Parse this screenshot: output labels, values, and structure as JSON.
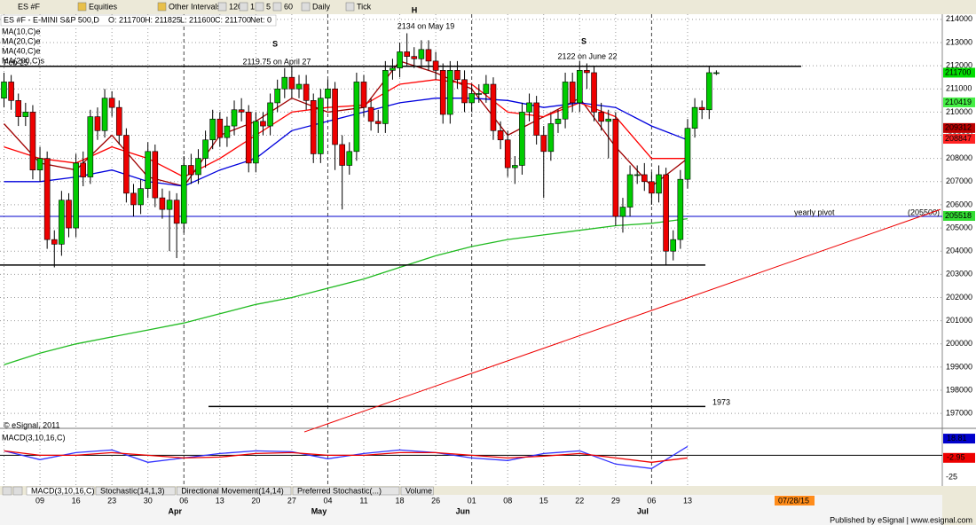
{
  "toolbar": {
    "symbol": "ES #F",
    "items": [
      "Equities",
      "Other Intervals",
      "120",
      "1",
      "5",
      "60",
      "Daily",
      "Tick"
    ]
  },
  "chart_data": {
    "type": "candlestick",
    "title": "ES #F - E-MINI S&P 500,D",
    "quote": [
      "O: 211700",
      "H: 211825",
      "L: 211600",
      "C: 211700",
      "Net: 0"
    ],
    "weeks": [
      null,
      "09",
      "16",
      "23",
      "30",
      "06",
      "13",
      "20",
      "27",
      "04",
      "11",
      "18",
      "26",
      "01",
      "08",
      "15",
      "22",
      "29",
      "06",
      "13"
    ],
    "months": [
      null,
      null,
      null,
      null,
      null,
      "Apr",
      null,
      null,
      null,
      "May",
      null,
      null,
      null,
      "Jun",
      null,
      null,
      null,
      null,
      "Jul",
      null
    ],
    "open": [
      2106,
      2113,
      2105,
      2098,
      2100,
      2075,
      2080,
      2045,
      2043,
      2062,
      2050,
      2078,
      2072,
      2098,
      2092,
      2106,
      2102,
      2090,
      2065,
      2060,
      2067,
      2083,
      2063,
      2058,
      2062,
      2052,
      2077,
      2073,
      2080,
      2088,
      2097,
      2089,
      2094,
      2101,
      2100,
      2078,
      2096,
      2094,
      2104,
      2110,
      2115,
      2110,
      2112,
      2105,
      2082,
      2106,
      2110,
      2086,
      2077,
      2083,
      2113,
      2102,
      2096,
      2095,
      2118,
      2119,
      2126,
      2124,
      2123,
      2127,
      2122,
      2118,
      2099,
      2118,
      2114,
      2104,
      2108,
      2108,
      2112,
      2092,
      2088,
      2076,
      2077,
      2100,
      2104,
      2090,
      2083,
      2095,
      2097,
      2113,
      2104,
      2118,
      2117,
      2100,
      2096,
      2097,
      2055,
      2059,
      2073,
      2073,
      2070,
      2065,
      2073,
      2040,
      2045,
      2071,
      2093,
      2102,
      2101,
      2117
    ],
    "high": [
      2117,
      2116,
      2108,
      2104,
      2103,
      2085,
      2083,
      2049,
      2066,
      2065,
      2082,
      2083,
      2101,
      2102,
      2110,
      2109,
      2105,
      2093,
      2069,
      2071,
      2087,
      2086,
      2067,
      2066,
      2065,
      2081,
      2082,
      2084,
      2092,
      2101,
      2100,
      2098,
      2105,
      2106,
      2103,
      2100,
      2100,
      2108,
      2114,
      2119,
      2120,
      2116,
      2116,
      2108,
      2110,
      2114,
      2113,
      2090,
      2087,
      2117,
      2116,
      2106,
      2101,
      2122,
      2123,
      2130,
      2134,
      2128,
      2131,
      2131,
      2126,
      2121,
      2122,
      2122,
      2118,
      2112,
      2112,
      2116,
      2115,
      2096,
      2092,
      2081,
      2104,
      2108,
      2107,
      2094,
      2099,
      2101,
      2117,
      2117,
      2122,
      2121,
      2120,
      2104,
      2101,
      2100,
      2063,
      2077,
      2077,
      2078,
      2074,
      2077,
      2076,
      2049,
      2075,
      2097,
      2106,
      2105,
      2120,
      2118
    ],
    "low": [
      2102,
      2101,
      2094,
      2094,
      2071,
      2070,
      2041,
      2033,
      2038,
      2046,
      2046,
      2068,
      2069,
      2088,
      2089,
      2098,
      2086,
      2061,
      2055,
      2056,
      2063,
      2059,
      2054,
      2040,
      2037,
      2048,
      2069,
      2069,
      2076,
      2084,
      2085,
      2085,
      2090,
      2096,
      2074,
      2074,
      2090,
      2090,
      2100,
      2106,
      2106,
      2106,
      2101,
      2078,
      2078,
      2102,
      2075,
      2058,
      2073,
      2079,
      2098,
      2092,
      2091,
      2091,
      2114,
      2115,
      2120,
      2119,
      2119,
      2118,
      2114,
      2095,
      2095,
      2110,
      2100,
      2100,
      2104,
      2104,
      2088,
      2084,
      2072,
      2069,
      2073,
      2096,
      2086,
      2063,
      2079,
      2091,
      2093,
      2100,
      2100,
      2110,
      2096,
      2092,
      2080,
      2051,
      2048,
      2055,
      2069,
      2066,
      2060,
      2061,
      2034,
      2036,
      2041,
      2067,
      2089,
      2097,
      2097,
      2116
    ],
    "close": [
      2113,
      2105,
      2098,
      2100,
      2075,
      2080,
      2045,
      2043,
      2062,
      2050,
      2078,
      2072,
      2098,
      2092,
      2106,
      2102,
      2090,
      2065,
      2060,
      2067,
      2083,
      2063,
      2058,
      2062,
      2052,
      2077,
      2073,
      2080,
      2088,
      2097,
      2089,
      2094,
      2101,
      2100,
      2078,
      2096,
      2094,
      2104,
      2110,
      2115,
      2110,
      2112,
      2105,
      2082,
      2106,
      2110,
      2086,
      2077,
      2083,
      2113,
      2102,
      2096,
      2095,
      2118,
      2119,
      2126,
      2124,
      2123,
      2127,
      2122,
      2118,
      2099,
      2118,
      2114,
      2104,
      2108,
      2108,
      2112,
      2092,
      2088,
      2076,
      2077,
      2100,
      2104,
      2090,
      2083,
      2095,
      2097,
      2113,
      2104,
      2118,
      2117,
      2100,
      2096,
      2097,
      2055,
      2059,
      2073,
      2073,
      2070,
      2065,
      2073,
      2040,
      2045,
      2071,
      2093,
      2102,
      2101,
      2117,
      2117
    ],
    "up_color": "#00cc00",
    "down_color": "#ee0000",
    "ylim": [
      1967,
      2143
    ],
    "yticks": [
      {
        "value": 2140,
        "label": "214000"
      },
      {
        "value": 2130,
        "label": "213000"
      },
      {
        "value": 2120,
        "label": "212000"
      },
      {
        "value": 2110,
        "label": "211000"
      },
      {
        "value": 2100,
        "label": "210000"
      },
      {
        "value": 2090,
        "label": "209000"
      },
      {
        "value": 2080,
        "label": "208000"
      },
      {
        "value": 2070,
        "label": "207000"
      },
      {
        "value": 2060,
        "label": "206000"
      },
      {
        "value": 2050,
        "label": "205000"
      },
      {
        "value": 2040,
        "label": "204000"
      },
      {
        "value": 2030,
        "label": "203000"
      },
      {
        "value": 2020,
        "label": "202000"
      },
      {
        "value": 2010,
        "label": "201000"
      },
      {
        "value": 2000,
        "label": "200000"
      },
      {
        "value": 1990,
        "label": "199000"
      },
      {
        "value": 1980,
        "label": "198000"
      },
      {
        "value": 1970,
        "label": "197000"
      }
    ],
    "grid": true,
    "ma_series": [
      {
        "name": "MA(10,C)e",
        "color": "#a00000",
        "values": [
          2095,
          2078,
          2075,
          2090,
          2072,
          2068,
          2090,
          2096,
          2106,
          2100,
          2102,
          2122,
          2117,
          2110,
          2090,
          2098,
          2106,
          2085,
          2068,
          2080
        ]
      },
      {
        "name": "MA(20,C)e",
        "color": "#ff0000",
        "values": [
          2085,
          2080,
          2078,
          2085,
          2080,
          2072,
          2080,
          2090,
          2100,
          2102,
          2103,
          2112,
          2114,
          2112,
          2100,
          2098,
          2104,
          2098,
          2080,
          2080
        ]
      },
      {
        "name": "MA(40,C)e",
        "color": "#0000dd",
        "values": [
          2070,
          2070,
          2072,
          2075,
          2070,
          2068,
          2075,
          2080,
          2092,
          2096,
          2100,
          2104,
          2106,
          2106,
          2105,
          2102,
          2104,
          2102,
          2094,
          2088
        ]
      },
      {
        "name": "MA(200,C)s",
        "color": "#22bb22",
        "values": [
          1991,
          1996,
          2000,
          2003,
          2006,
          2009,
          2013,
          2017,
          2020,
          2024,
          2028,
          2033,
          2038,
          2042,
          2045,
          2047,
          2049,
          2051,
          2052,
          2054
        ]
      }
    ],
    "price_tags": [
      {
        "value": 2117,
        "label": "211700",
        "color": "#00dd00"
      },
      {
        "value": 2104.19,
        "label": "210419",
        "color": "#44ee44"
      },
      {
        "value": 2093.12,
        "label": "209312",
        "color": "#bb0000"
      },
      {
        "value": 2088.47,
        "label": "208847",
        "color": "#ff2222"
      },
      {
        "value": 2055.18,
        "label": "205518",
        "color": "#33dd33"
      }
    ],
    "levels": [
      {
        "value": 2119.75,
        "color": "#000000"
      },
      {
        "value": 2034,
        "color": "#000000"
      },
      {
        "value": 1973,
        "label": "1973",
        "color": "#000000"
      },
      {
        "value": 2055,
        "label": "yearly pivot",
        "tag": "(205500)",
        "color": "#0000cc"
      }
    ],
    "trendline": {
      "color": "#ee0000",
      "values": [
        1962,
        2058
      ]
    },
    "annotations": [
      "H",
      "S",
      "2119.75 on April 27",
      "2134 on May 19",
      "S",
      "2122 on June 22"
    ],
    "legend_note": "Feb 25",
    "copyright": "© eSignal, 2011",
    "macd": {
      "title": "MACD(3,10,16,C)",
      "ylim": [
        -33.7,
        27.4
      ],
      "yticks": [
        -25
      ],
      "series": [
        {
          "color": "#3333ff",
          "values": [
            5,
            -5,
            3,
            6,
            -8,
            -3,
            2,
            5,
            4,
            -4,
            2,
            6,
            3,
            -3,
            -6,
            2,
            5,
            -10,
            -15,
            10
          ]
        },
        {
          "color": "#ee0000",
          "values": [
            5,
            0,
            0,
            3,
            0,
            -3,
            -2,
            2,
            3,
            0,
            0,
            3,
            3,
            0,
            -3,
            -1,
            2,
            -3,
            -8,
            -3
          ]
        }
      ],
      "tags": [
        {
          "value": 18.81,
          "color": "#0000cc"
        },
        {
          "value": -2.95,
          "color": "#ee0000"
        }
      ]
    },
    "tabs": [
      "MACD(3,10,16,C)",
      "Stochastic(14,1,3)",
      "Directional Movement(14,14)",
      "Preferred Stochastic(...)",
      "Volume"
    ],
    "date_box": "07/28/15",
    "footer": "Published by eSignal | www.esignal.com"
  }
}
